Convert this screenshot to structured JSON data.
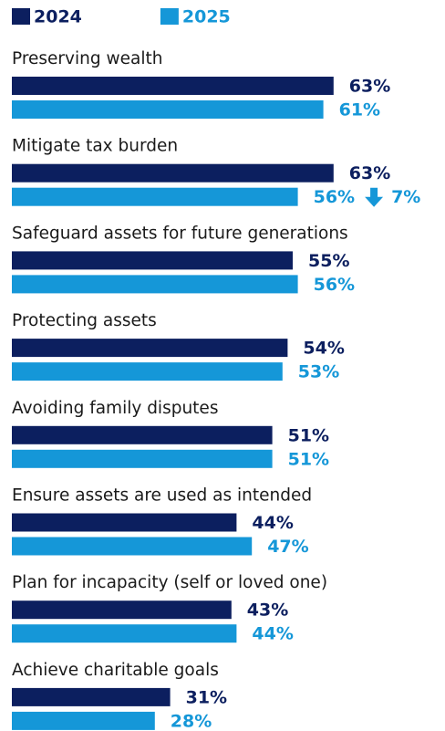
{
  "chart_data": {
    "type": "bar",
    "orientation": "horizontal",
    "categories": [
      "Preserving wealth",
      "Mitigate tax burden",
      "Safeguard assets for future generations",
      "Protecting assets",
      "Avoiding family disputes",
      "Ensure assets are used as intended",
      "Plan for incapacity (self or loved one)",
      "Achieve charitable goals"
    ],
    "series": [
      {
        "name": "2024",
        "color": "#0c1f5f",
        "values": [
          63,
          63,
          55,
          54,
          51,
          44,
          43,
          31
        ],
        "value_labels": [
          "63%",
          "63%",
          "55%",
          "54%",
          "51%",
          "44%",
          "43%",
          "31%"
        ]
      },
      {
        "name": "2025",
        "color": "#1597d8",
        "values": [
          61,
          56,
          56,
          53,
          51,
          47,
          44,
          28
        ],
        "value_labels": [
          "61%",
          "56%",
          "56%",
          "53%",
          "51%",
          "47%",
          "44%",
          "28%"
        ]
      }
    ],
    "annotation": "7%",
    "legend": "top-left"
  }
}
